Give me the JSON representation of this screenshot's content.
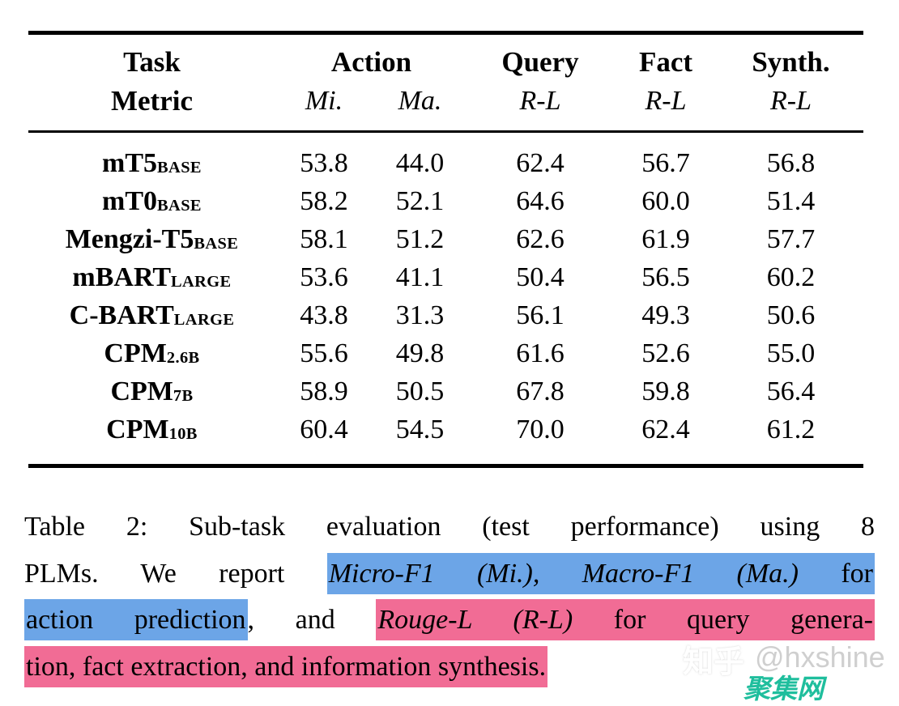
{
  "table": {
    "header": {
      "task": "Task",
      "metric": "Metric",
      "groups": [
        {
          "label": "Action",
          "subs": [
            "Mi.",
            "Ma."
          ]
        },
        {
          "label": "Query",
          "subs": [
            "R-L"
          ]
        },
        {
          "label": "Fact",
          "subs": [
            "R-L"
          ]
        },
        {
          "label": "Synth.",
          "subs": [
            "R-L"
          ]
        }
      ]
    },
    "rows": [
      {
        "model": "mT5",
        "sub": "BASE",
        "values": [
          "53.8",
          "44.0",
          "62.4",
          "56.7",
          "56.8"
        ],
        "bold": false
      },
      {
        "model": "mT0",
        "sub": "BASE",
        "values": [
          "58.2",
          "52.1",
          "64.6",
          "60.0",
          "51.4"
        ],
        "bold": false
      },
      {
        "model": "Mengzi-T5",
        "sub": "BASE",
        "values": [
          "58.1",
          "51.2",
          "62.6",
          "61.9",
          "57.7"
        ],
        "bold": false
      },
      {
        "model": "mBART",
        "sub": "LARGE",
        "values": [
          "53.6",
          "41.1",
          "50.4",
          "56.5",
          "60.2"
        ],
        "bold": false
      },
      {
        "model": "C-BART",
        "sub": "LARGE",
        "values": [
          "43.8",
          "31.3",
          "56.1",
          "49.3",
          "50.6"
        ],
        "bold": false
      },
      {
        "model": "CPM",
        "sub": "2.6B",
        "values": [
          "55.6",
          "49.8",
          "61.6",
          "52.6",
          "55.0"
        ],
        "bold": false
      },
      {
        "model": "CPM",
        "sub": "7B",
        "values": [
          "58.9",
          "50.5",
          "67.8",
          "59.8",
          "56.4"
        ],
        "bold": false
      },
      {
        "model": "CPM",
        "sub": "10B",
        "values": [
          "60.4",
          "54.5",
          "70.0",
          "62.4",
          "61.2"
        ],
        "bold": true
      }
    ]
  },
  "chart_data": {
    "type": "table",
    "title": "Table 2: Sub-task evaluation (test performance) using 8 PLMs",
    "columns": [
      "Task/Metric",
      "Action Mi.",
      "Action Ma.",
      "Query R-L",
      "Fact R-L",
      "Synth. R-L"
    ],
    "categories": [
      "mT5-BASE",
      "mT0-BASE",
      "Mengzi-T5-BASE",
      "mBART-LARGE",
      "C-BART-LARGE",
      "CPM-2.6B",
      "CPM-7B",
      "CPM-10B"
    ],
    "series": [
      {
        "name": "Action Mi.",
        "values": [
          53.8,
          58.2,
          58.1,
          53.6,
          43.8,
          55.6,
          58.9,
          60.4
        ]
      },
      {
        "name": "Action Ma.",
        "values": [
          44.0,
          52.1,
          51.2,
          41.1,
          31.3,
          49.8,
          50.5,
          54.5
        ]
      },
      {
        "name": "Query R-L",
        "values": [
          62.4,
          64.6,
          62.6,
          50.4,
          56.1,
          61.6,
          67.8,
          70.0
        ]
      },
      {
        "name": "Fact R-L",
        "values": [
          56.7,
          60.0,
          61.9,
          56.5,
          49.3,
          52.6,
          59.8,
          62.4
        ]
      },
      {
        "name": "Synth. R-L",
        "values": [
          56.8,
          51.4,
          57.7,
          60.2,
          50.6,
          55.0,
          56.4,
          61.2
        ]
      }
    ]
  },
  "caption": {
    "line1": "Table 2: Sub-task evaluation (test performance) using 8",
    "line2_plain": "PLMs. We report ",
    "line2_blue_italic": "Micro-F1 (Mi.), Macro-F1 (Ma.)",
    "line2_blue_plain": " for",
    "line3_blue": "action prediction",
    "line3_plain": ", and ",
    "line3_pink_italic": "Rouge-L (R-L)",
    "line3_pink_plain": " for query genera-",
    "line4_pink": "tion, fact extraction, and information synthesis."
  },
  "watermark": {
    "zhihu": "知乎",
    "handle": "@hxshine",
    "logo": "聚集网"
  },
  "colors": {
    "highlight_blue": "#6CA5E7",
    "highlight_pink": "#F16C95",
    "watermark_gray": "#CFCFCF",
    "logo_teal": "#1FBE9D"
  }
}
